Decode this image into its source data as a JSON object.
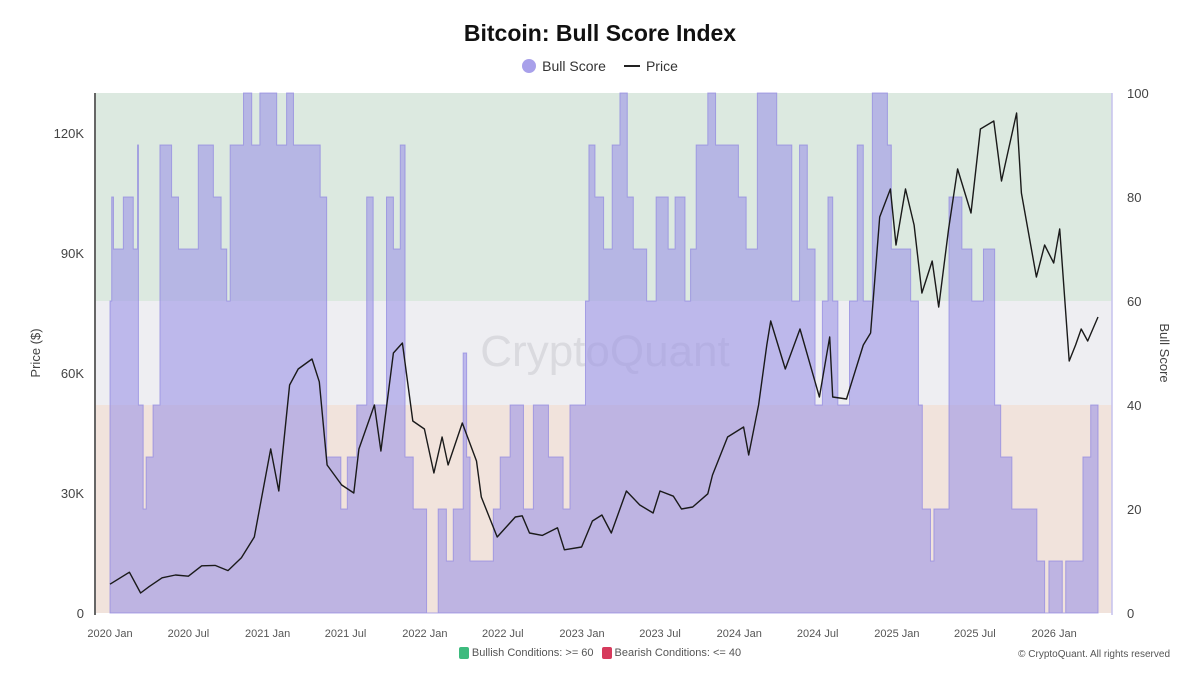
{
  "title": "Bitcoin: Bull Score Index",
  "legend": {
    "bull_score": "Bull Score",
    "price": "Price"
  },
  "footer": {
    "bullish": "Bullish Conditions: >= 60",
    "bearish": "Bearish Conditions: <= 40",
    "copyright": "© CryptoQuant. All rights reserved"
  },
  "watermark": "CryptoQuant",
  "colors": {
    "bull_fill": "#9d95e6",
    "price_line": "#1a1a1a",
    "bullish_zone": "#dce9e0",
    "neutral_zone": "#eeeef2",
    "bearish_zone": "#f1e3dc",
    "bullish_swatch": "#3dbb7e",
    "bearish_swatch": "#d63a5c"
  },
  "chart_data": {
    "type": "area+line",
    "title": "Bitcoin: Bull Score Index",
    "ylabel_left": "Price ($)",
    "ylabel_right": "Bull Score",
    "ylim_left": [
      0,
      130000
    ],
    "ylim_right": [
      0,
      100
    ],
    "xlim": [
      "2020-01-01",
      "2026-04-13"
    ],
    "x_ticks": [
      "2020 Jan",
      "2020 Jul",
      "2021 Jan",
      "2021 Jul",
      "2022 Jan",
      "2022 Jul",
      "2023 Jan",
      "2023 Jul",
      "2024 Jan",
      "2024 Jul",
      "2025 Jan",
      "2025 Jul",
      "2026 Jan"
    ],
    "y_ticks_left": [
      "0",
      "30K",
      "60K",
      "90K",
      "120K"
    ],
    "y_ticks_right": [
      "0",
      "20",
      "40",
      "60",
      "80",
      "100"
    ],
    "zones": [
      {
        "label": "Bullish Conditions: >= 60",
        "from": 60,
        "to": 100
      },
      {
        "label": "Bearish Conditions: <= 40",
        "from": 0,
        "to": 40
      }
    ],
    "grid": false,
    "legend_position": "top",
    "series": [
      {
        "name": "Bull Score",
        "type": "step-area",
        "points": [
          [
            "2020-01-01",
            60
          ],
          [
            "2020-01-05",
            80
          ],
          [
            "2020-01-09",
            70
          ],
          [
            "2020-02-01",
            80
          ],
          [
            "2020-02-24",
            70
          ],
          [
            "2020-03-05",
            90
          ],
          [
            "2020-03-07",
            40
          ],
          [
            "2020-03-18",
            20
          ],
          [
            "2020-03-25",
            30
          ],
          [
            "2020-04-10",
            40
          ],
          [
            "2020-04-26",
            90
          ],
          [
            "2020-05-23",
            80
          ],
          [
            "2020-06-08",
            70
          ],
          [
            "2020-07-24",
            90
          ],
          [
            "2020-08-28",
            80
          ],
          [
            "2020-09-15",
            70
          ],
          [
            "2020-09-28",
            60
          ],
          [
            "2020-10-06",
            90
          ],
          [
            "2020-11-06",
            100
          ],
          [
            "2020-11-25",
            90
          ],
          [
            "2020-12-14",
            100
          ],
          [
            "2021-01-22",
            90
          ],
          [
            "2021-02-14",
            100
          ],
          [
            "2021-03-02",
            90
          ],
          [
            "2021-05-03",
            80
          ],
          [
            "2021-05-18",
            30
          ],
          [
            "2021-06-20",
            20
          ],
          [
            "2021-07-05",
            30
          ],
          [
            "2021-07-27",
            40
          ],
          [
            "2021-08-19",
            80
          ],
          [
            "2021-09-03",
            40
          ],
          [
            "2021-10-04",
            80
          ],
          [
            "2021-10-20",
            70
          ],
          [
            "2021-11-05",
            90
          ],
          [
            "2021-11-16",
            30
          ],
          [
            "2021-12-05",
            20
          ],
          [
            "2022-01-05",
            0
          ],
          [
            "2022-02-01",
            20
          ],
          [
            "2022-02-20",
            10
          ],
          [
            "2022-03-08",
            20
          ],
          [
            "2022-03-31",
            50
          ],
          [
            "2022-04-08",
            30
          ],
          [
            "2022-04-16",
            10
          ],
          [
            "2022-06-09",
            20
          ],
          [
            "2022-06-25",
            30
          ],
          [
            "2022-07-18",
            40
          ],
          [
            "2022-08-18",
            20
          ],
          [
            "2022-09-10",
            40
          ],
          [
            "2022-10-15",
            30
          ],
          [
            "2022-11-18",
            20
          ],
          [
            "2022-12-04",
            40
          ],
          [
            "2023-01-09",
            60
          ],
          [
            "2023-01-17",
            90
          ],
          [
            "2023-01-31",
            80
          ],
          [
            "2023-02-20",
            70
          ],
          [
            "2023-03-12",
            90
          ],
          [
            "2023-03-30",
            100
          ],
          [
            "2023-04-16",
            80
          ],
          [
            "2023-04-30",
            70
          ],
          [
            "2023-05-31",
            60
          ],
          [
            "2023-06-22",
            80
          ],
          [
            "2023-07-20",
            70
          ],
          [
            "2023-08-05",
            80
          ],
          [
            "2023-08-28",
            60
          ],
          [
            "2023-09-10",
            70
          ],
          [
            "2023-09-23",
            90
          ],
          [
            "2023-10-20",
            100
          ],
          [
            "2023-11-07",
            90
          ],
          [
            "2023-12-30",
            80
          ],
          [
            "2024-01-17",
            70
          ],
          [
            "2024-02-12",
            100
          ],
          [
            "2024-03-28",
            90
          ],
          [
            "2024-05-02",
            60
          ],
          [
            "2024-05-20",
            90
          ],
          [
            "2024-06-07",
            70
          ],
          [
            "2024-06-25",
            40
          ],
          [
            "2024-07-12",
            60
          ],
          [
            "2024-07-25",
            80
          ],
          [
            "2024-08-05",
            60
          ],
          [
            "2024-08-17",
            40
          ],
          [
            "2024-09-13",
            60
          ],
          [
            "2024-10-01",
            90
          ],
          [
            "2024-10-15",
            60
          ],
          [
            "2024-11-05",
            100
          ],
          [
            "2024-12-10",
            90
          ],
          [
            "2024-12-19",
            70
          ],
          [
            "2025-02-02",
            60
          ],
          [
            "2025-02-20",
            40
          ],
          [
            "2025-03-01",
            20
          ],
          [
            "2025-03-20",
            10
          ],
          [
            "2025-03-28",
            20
          ],
          [
            "2025-05-02",
            80
          ],
          [
            "2025-06-01",
            70
          ],
          [
            "2025-06-24",
            60
          ],
          [
            "2025-07-21",
            70
          ],
          [
            "2025-08-16",
            40
          ],
          [
            "2025-08-30",
            30
          ],
          [
            "2025-09-25",
            20
          ],
          [
            "2025-11-22",
            10
          ],
          [
            "2025-12-10",
            0
          ],
          [
            "2025-12-20",
            10
          ],
          [
            "2026-01-20",
            0
          ],
          [
            "2026-01-28",
            10
          ],
          [
            "2026-03-09",
            30
          ],
          [
            "2026-03-27",
            40
          ],
          [
            "2026-04-13",
            40
          ]
        ]
      },
      {
        "name": "Price",
        "type": "line",
        "points": [
          [
            "2020-01-01",
            7200
          ],
          [
            "2020-02-15",
            10200
          ],
          [
            "2020-03-12",
            5000
          ],
          [
            "2020-04-01",
            6600
          ],
          [
            "2020-05-01",
            8800
          ],
          [
            "2020-06-01",
            9500
          ],
          [
            "2020-07-01",
            9200
          ],
          [
            "2020-08-01",
            11800
          ],
          [
            "2020-09-01",
            11900
          ],
          [
            "2020-10-01",
            10600
          ],
          [
            "2020-11-01",
            13800
          ],
          [
            "2020-12-01",
            19000
          ],
          [
            "2021-01-08",
            41000
          ],
          [
            "2021-01-27",
            30500
          ],
          [
            "2021-02-21",
            57000
          ],
          [
            "2021-03-13",
            61000
          ],
          [
            "2021-04-14",
            63500
          ],
          [
            "2021-05-01",
            57800
          ],
          [
            "2021-05-19",
            37000
          ],
          [
            "2021-06-22",
            32000
          ],
          [
            "2021-07-20",
            30000
          ],
          [
            "2021-08-01",
            41000
          ],
          [
            "2021-09-06",
            52000
          ],
          [
            "2021-09-21",
            40500
          ],
          [
            "2021-10-20",
            65000
          ],
          [
            "2021-11-10",
            67500
          ],
          [
            "2021-12-04",
            48000
          ],
          [
            "2021-12-31",
            46000
          ],
          [
            "2022-01-22",
            35000
          ],
          [
            "2022-02-10",
            44000
          ],
          [
            "2022-02-24",
            37000
          ],
          [
            "2022-03-29",
            47500
          ],
          [
            "2022-05-01",
            38000
          ],
          [
            "2022-05-12",
            29000
          ],
          [
            "2022-06-18",
            19000
          ],
          [
            "2022-07-30",
            24000
          ],
          [
            "2022-08-15",
            24300
          ],
          [
            "2022-09-01",
            20000
          ],
          [
            "2022-10-01",
            19400
          ],
          [
            "2022-11-05",
            21300
          ],
          [
            "2022-11-21",
            15800
          ],
          [
            "2022-12-31",
            16500
          ],
          [
            "2023-01-25",
            23000
          ],
          [
            "2023-02-16",
            24500
          ],
          [
            "2023-03-10",
            20000
          ],
          [
            "2023-04-14",
            30500
          ],
          [
            "2023-05-15",
            27000
          ],
          [
            "2023-06-15",
            25000
          ],
          [
            "2023-07-01",
            30500
          ],
          [
            "2023-08-01",
            29200
          ],
          [
            "2023-08-20",
            26000
          ],
          [
            "2023-09-15",
            26500
          ],
          [
            "2023-10-20",
            29800
          ],
          [
            "2023-10-31",
            34500
          ],
          [
            "2023-12-05",
            44000
          ],
          [
            "2024-01-11",
            46500
          ],
          [
            "2024-01-23",
            39500
          ],
          [
            "2024-02-15",
            52000
          ],
          [
            "2024-03-05",
            67000
          ],
          [
            "2024-03-14",
            73000
          ],
          [
            "2024-04-17",
            61000
          ],
          [
            "2024-05-21",
            71000
          ],
          [
            "2024-07-05",
            54000
          ],
          [
            "2024-07-29",
            69000
          ],
          [
            "2024-08-05",
            54000
          ],
          [
            "2024-09-06",
            53500
          ],
          [
            "2024-10-15",
            67000
          ],
          [
            "2024-11-01",
            70000
          ],
          [
            "2024-11-22",
            99000
          ],
          [
            "2024-12-17",
            106000
          ],
          [
            "2024-12-30",
            92000
          ],
          [
            "2025-01-21",
            106000
          ],
          [
            "2025-02-10",
            97000
          ],
          [
            "2025-02-28",
            80000
          ],
          [
            "2025-03-24",
            88000
          ],
          [
            "2025-04-08",
            76500
          ],
          [
            "2025-05-01",
            96000
          ],
          [
            "2025-05-22",
            111000
          ],
          [
            "2025-06-22",
            100000
          ],
          [
            "2025-07-14",
            121000
          ],
          [
            "2025-08-14",
            123000
          ],
          [
            "2025-09-01",
            108000
          ],
          [
            "2025-10-06",
            125000
          ],
          [
            "2025-10-17",
            105000
          ],
          [
            "2025-11-21",
            84000
          ],
          [
            "2025-12-10",
            92000
          ],
          [
            "2025-12-31",
            87500
          ],
          [
            "2026-01-14",
            96000
          ],
          [
            "2026-02-05",
            63000
          ],
          [
            "2026-02-20",
            67000
          ],
          [
            "2026-03-05",
            71000
          ],
          [
            "2026-03-20",
            68000
          ],
          [
            "2026-04-13",
            74000
          ]
        ]
      }
    ]
  }
}
